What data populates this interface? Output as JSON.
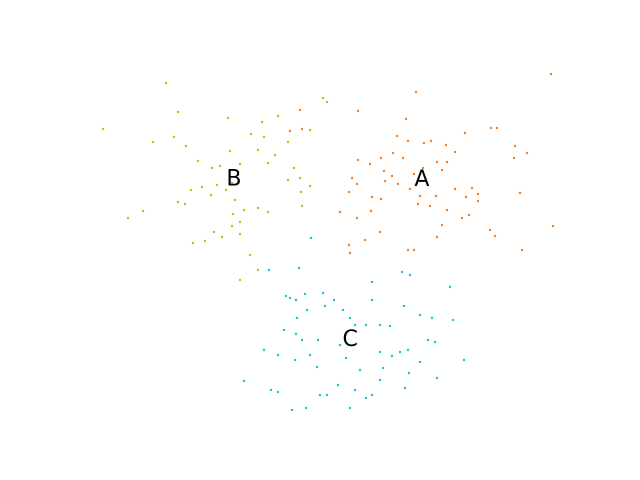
{
  "chart_data": {
    "type": "scatter",
    "xlim": [
      80,
      576
    ],
    "ylim": [
      53,
      422
    ],
    "series": [
      {
        "name": "A",
        "color": "#f57d1f",
        "x": [
          551,
          416,
          358,
          300,
          406,
          290,
          302,
          465,
          491,
          497,
          397,
          408,
          424,
          431,
          446,
          455,
          515,
          527,
          514,
          393,
          403,
          381,
          370,
          358,
          437,
          447,
          442,
          423,
          384,
          392,
          414,
          352,
          357,
          385,
          398,
          410,
          472,
          478,
          466,
          455,
          520,
          349,
          372,
          381,
          418,
          430,
          447,
          469,
          462,
          442,
          490,
          495,
          437,
          371,
          340,
          357,
          365,
          380,
          349,
          350,
          408,
          414,
          522,
          553,
          478,
          420,
          436
        ],
        "values": [
          406,
          388,
          369,
          370,
          361,
          349,
          351,
          347,
          352,
          352,
          344,
          339,
          337,
          339,
          335,
          328,
          334,
          327,
          322,
          327,
          322,
          322,
          316,
          320,
          318,
          318,
          310,
          312,
          309,
          304,
          306,
          302,
          296,
          299,
          296,
          291,
          292,
          286,
          283,
          291,
          287,
          288,
          283,
          281,
          276,
          274,
          270,
          265,
          262,
          255,
          250,
          244,
          243,
          269,
          268,
          262,
          240,
          248,
          235,
          227,
          230,
          230,
          230,
          254,
          279,
          284,
          284
        ]
      },
      {
        "name": "B",
        "color": "#a5cc14",
        "x": [
          166,
          178,
          103,
          153,
          174,
          186,
          228,
          262,
          278,
          251,
          264,
          258,
          275,
          230,
          198,
          212,
          220,
          240,
          268,
          294,
          288,
          300,
          310,
          232,
          226,
          217,
          202,
          191,
          178,
          185,
          211,
          235,
          244,
          258,
          268,
          302,
          233,
          240,
          232,
          214,
          240,
          193,
          205,
          222,
          128,
          143,
          323,
          327,
          310,
          288,
          301,
          258,
          240,
          250
        ],
        "values": [
          397,
          368,
          351,
          338,
          343,
          334,
          362,
          358,
          364,
          346,
          343,
          330,
          325,
          329,
          319,
          312,
          314,
          316,
          317,
          312,
          300,
          302,
          294,
          297,
          290,
          295,
          293,
          290,
          278,
          276,
          285,
          280,
          270,
          272,
          268,
          274,
          266,
          258,
          254,
          248,
          246,
          237,
          239,
          243,
          262,
          269,
          382,
          378,
          350,
          338,
          288,
          210,
          200,
          225
        ]
      },
      {
        "name": "C",
        "color": "#1fbfd0",
        "x": [
          311,
          299,
          269,
          286,
          290,
          296,
          305,
          323,
          307,
          297,
          325,
          334,
          343,
          350,
          372,
          402,
          410,
          450,
          404,
          372,
          284,
          296,
          302,
          318,
          340,
          355,
          366,
          380,
          390,
          420,
          432,
          453,
          435,
          428,
          408,
          400,
          392,
          380,
          383,
          380,
          409,
          420,
          464,
          264,
          278,
          295,
          310,
          346,
          360,
          317,
          271,
          278,
          244,
          338,
          355,
          372,
          405,
          437,
          292,
          306,
          320,
          327,
          350,
          366
        ],
        "values": [
          242,
          212,
          210,
          184,
          182,
          180,
          186,
          187,
          170,
          162,
          174,
          180,
          170,
          162,
          198,
          208,
          205,
          193,
          174,
          180,
          150,
          146,
          140,
          140,
          135,
          155,
          155,
          155,
          154,
          165,
          162,
          160,
          138,
          140,
          130,
          128,
          124,
          128,
          112,
          100,
          107,
          118,
          120,
          130,
          125,
          120,
          125,
          122,
          110,
          113,
          90,
          88,
          99,
          95,
          90,
          85,
          92,
          102,
          70,
          72,
          85,
          85,
          72,
          82
        ]
      }
    ]
  }
}
